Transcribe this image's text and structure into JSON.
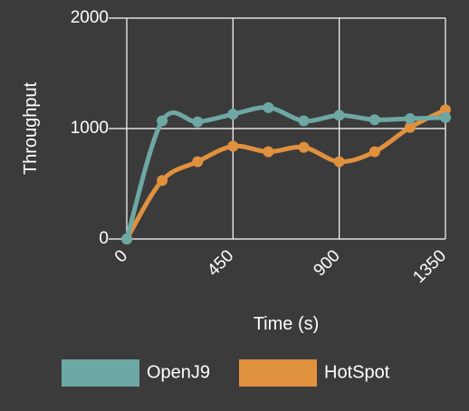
{
  "chart_data": {
    "type": "line",
    "xlabel": "Time (s)",
    "ylabel": "Throughput",
    "xlim": [
      0,
      1350
    ],
    "ylim": [
      0,
      2000
    ],
    "x_ticks": [
      0,
      450,
      900,
      1350
    ],
    "y_ticks": [
      0,
      1000,
      2000
    ],
    "grid": true,
    "legend": "bottom",
    "x": [
      0,
      150,
      300,
      450,
      600,
      750,
      900,
      1050,
      1200,
      1350
    ],
    "series": [
      {
        "name": "OpenJ9",
        "color": "#6ea8a4",
        "values": [
          0,
          1070,
          1060,
          1130,
          1190,
          1070,
          1120,
          1080,
          1090,
          1100
        ]
      },
      {
        "name": "HotSpot",
        "color": "#e0913e",
        "values": [
          0,
          530,
          700,
          840,
          790,
          830,
          700,
          790,
          1010,
          1170
        ]
      }
    ]
  }
}
